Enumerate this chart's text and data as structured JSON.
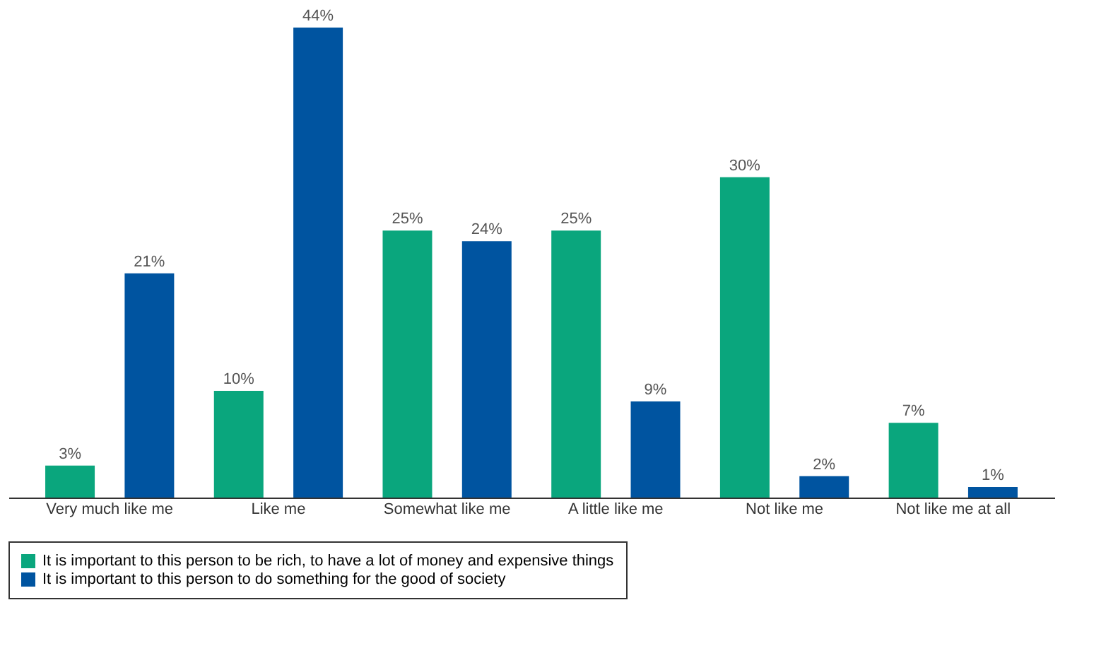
{
  "chart_data": {
    "type": "bar",
    "categories": [
      "Very much like me",
      "Like me",
      "Somewhat like me",
      "A little like me",
      "Not like me",
      "Not like me at all"
    ],
    "series": [
      {
        "name": "It is important to this person to be rich, to have a lot of money and expensive things",
        "color": "#0aa67d",
        "values": [
          3,
          10,
          25,
          25,
          30,
          7
        ],
        "value_labels": [
          "3%",
          "10%",
          "25%",
          "25%",
          "30%",
          "7%"
        ]
      },
      {
        "name": "It is important to this person to do something for the good of society",
        "color": "#0054a0",
        "values": [
          21,
          44,
          24,
          9,
          2,
          1
        ],
        "value_labels": [
          "21%",
          "44%",
          "24%",
          "9%",
          "2%",
          "1%"
        ]
      }
    ],
    "legend": "bottom",
    "grid": false
  }
}
